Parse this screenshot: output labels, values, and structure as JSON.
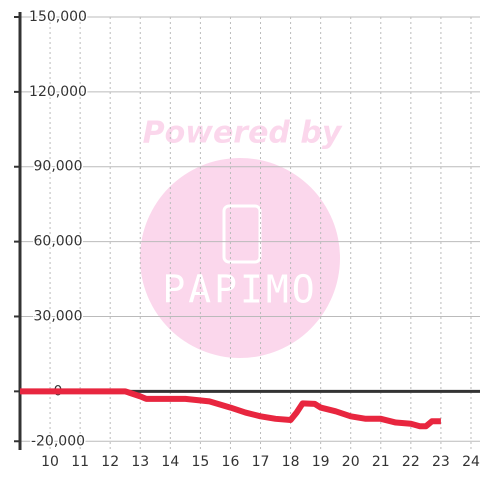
{
  "chart_data": {
    "type": "line",
    "watermark": [
      "Powered by",
      "PAPIMO"
    ],
    "x": [
      9,
      12.5,
      13,
      13.2,
      14.5,
      15.3,
      16,
      16.5,
      17,
      17.5,
      18,
      18.2,
      18.4,
      18.8,
      19,
      19.5,
      20,
      20.5,
      21,
      21.5,
      22,
      22.3,
      22.5,
      22.7,
      23
    ],
    "series": [
      {
        "color": "#e8263f",
        "values": [
          0,
          0,
          -2000,
          -3000,
          -3000,
          -4000,
          -6500,
          -8500,
          -10000,
          -11000,
          -11500,
          -8500,
          -4800,
          -5000,
          -6500,
          -8000,
          -10000,
          -11000,
          -11000,
          -12500,
          -13000,
          -14000,
          -14000,
          -12000,
          -12000
        ]
      }
    ],
    "xlim": [
      9,
      24.3
    ],
    "xticks": [
      10,
      11,
      12,
      13,
      14,
      15,
      16,
      17,
      18,
      19,
      20,
      21,
      22,
      23,
      24
    ],
    "ylim": [
      -23500,
      150000
    ],
    "yticks": [
      {
        "value": -20000,
        "label": "-20,000"
      },
      0,
      {
        "value": 30000,
        "label": "30,000"
      },
      {
        "value": 60000,
        "label": "60,000"
      },
      {
        "value": 90000,
        "label": "90,000"
      },
      {
        "value": 120000,
        "label": "120,000"
      },
      {
        "value": 150000,
        "label": "150,000"
      }
    ],
    "grid": true
  }
}
